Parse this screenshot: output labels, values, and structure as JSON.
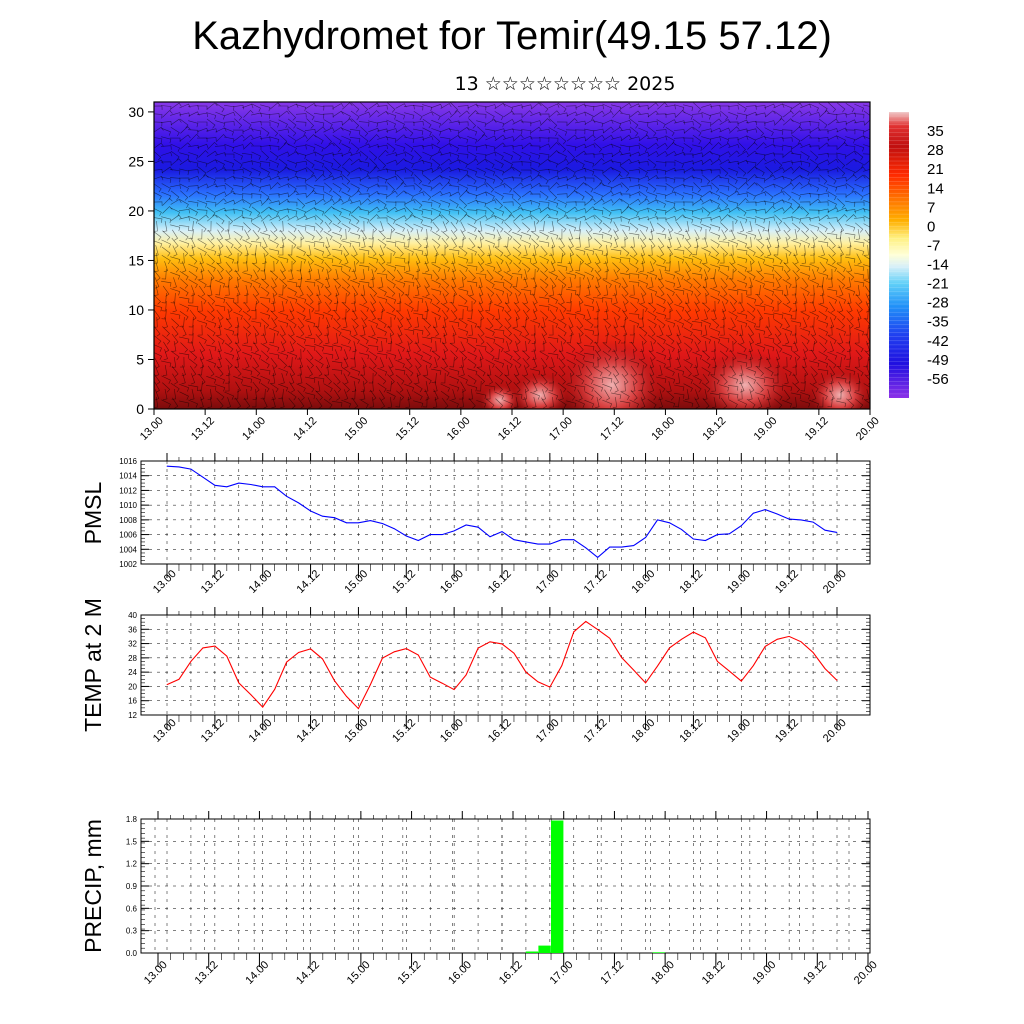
{
  "header": {
    "title": "Kazhydromet for Temir(49.15 57.12)",
    "subtitle": "13 ☆☆☆☆☆☆☆☆ 2025"
  },
  "chart_data": [
    {
      "type": "heatmap",
      "name": "temperature-wind-cross-section",
      "x_ticks": [
        "13.00",
        "13.12",
        "14.00",
        "14.12",
        "15.00",
        "15.12",
        "16.00",
        "16.12",
        "17.00",
        "17.12",
        "18.00",
        "18.12",
        "19.00",
        "19.12",
        "20.00"
      ],
      "y_ticks": [
        "0",
        "5",
        "10",
        "15",
        "20",
        "25",
        "30"
      ],
      "ylim": [
        0,
        31
      ],
      "colorbar_labels": [
        "35",
        "28",
        "21",
        "14",
        "7",
        "0",
        "-7",
        "-14",
        "-21",
        "-28",
        "-35",
        "-42",
        "-49",
        "-56"
      ],
      "colorbar_range": [
        -63,
        42
      ],
      "colors": [
        "#7b0d0d",
        "#d01010",
        "#ff3a00",
        "#ff8a00",
        "#ffd000",
        "#fff5b0",
        "#cfeef8",
        "#38b8f0",
        "#1e5cff",
        "#2020e0",
        "#4410e0",
        "#8a2ee0"
      ]
    },
    {
      "type": "line",
      "ylabel": "PMSL",
      "x_ticks": [
        "13.00",
        "13.12",
        "14.00",
        "14.12",
        "15.00",
        "15.12",
        "16.00",
        "16.12",
        "17.00",
        "17.12",
        "18.00",
        "18.12",
        "19.00",
        "19.12",
        "20.00"
      ],
      "y_ticks": [
        "1016",
        "1014",
        "1012",
        "1010",
        "1008",
        "1006",
        "1004",
        "1002"
      ],
      "ylim": [
        1002,
        1016
      ],
      "series": [
        {
          "color": "#0000ff",
          "values": [
            1015.3,
            1015.2,
            1014.9,
            1013.8,
            1012.7,
            1012.5,
            1013.0,
            1012.8,
            1012.5,
            1012.5,
            1011.2,
            1010.3,
            1009.2,
            1008.5,
            1008.3,
            1007.6,
            1007.6,
            1007.9,
            1007.5,
            1006.8,
            1005.8,
            1005.2,
            1006.0,
            1006.0,
            1006.5,
            1007.3,
            1007.0,
            1005.7,
            1006.4,
            1005.3,
            1005.0,
            1004.7,
            1004.7,
            1005.3,
            1005.3,
            1004.2,
            1002.9,
            1004.3,
            1004.3,
            1004.5,
            1005.6,
            1008.0,
            1007.6,
            1006.7,
            1005.4,
            1005.2,
            1006.0,
            1006.1,
            1007.2,
            1008.9,
            1009.4,
            1008.8,
            1008.1,
            1008.0,
            1007.7,
            1006.6,
            1006.3
          ]
        }
      ]
    },
    {
      "type": "line",
      "ylabel": "TEMP at 2 M",
      "x_ticks": [
        "13.00",
        "13.12",
        "14.00",
        "14.12",
        "15.00",
        "15.12",
        "16.00",
        "16.12",
        "17.00",
        "17.12",
        "18.00",
        "18.12",
        "19.00",
        "19.12",
        "20.00"
      ],
      "y_ticks": [
        "40",
        "36",
        "32",
        "28",
        "24",
        "20",
        "16",
        "12"
      ],
      "ylim": [
        12,
        40
      ],
      "series": [
        {
          "color": "#ff0000",
          "values": [
            20.5,
            22,
            27,
            30.8,
            31.3,
            28.5,
            21,
            17.7,
            14.2,
            19.2,
            26.8,
            29.5,
            30.5,
            27.7,
            21.6,
            17.2,
            13.8,
            20.5,
            27.9,
            29.7,
            30.6,
            28.8,
            22.6,
            20.9,
            19.1,
            23.2,
            30.7,
            32.5,
            31.9,
            29.3,
            24,
            21.3,
            19.8,
            25.8,
            35.3,
            38.2,
            35.9,
            33.5,
            28.1,
            24.6,
            21,
            25.7,
            30.8,
            33.2,
            35.2,
            33.6,
            27,
            24.3,
            21.5,
            25.8,
            31.2,
            33.2,
            34,
            32.5,
            29.5,
            25,
            21.7
          ]
        }
      ]
    },
    {
      "type": "bar",
      "ylabel": "PRECIP, mm",
      "x_ticks": [
        "13.00",
        "13.12",
        "14.00",
        "14.12",
        "15.00",
        "15.12",
        "16.00",
        "16.12",
        "17.00",
        "17.12",
        "18.00",
        "18.12",
        "19.00",
        "19.12",
        "20.00"
      ],
      "y_ticks": [
        "1.8",
        "1.5",
        "1.2",
        "0.9",
        "0.6",
        "0.3",
        "0.0"
      ],
      "ylim": [
        0,
        1.8
      ],
      "series": [
        {
          "color": "#00ff00",
          "values": [
            0,
            0,
            0,
            0,
            0,
            0,
            0,
            0,
            0,
            0,
            0,
            0,
            0,
            0,
            0,
            0,
            0,
            0,
            0,
            0,
            0,
            0,
            0,
            0,
            0,
            0,
            0,
            0,
            0,
            0.02,
            0.1,
            1.78,
            0,
            0,
            0,
            0,
            0,
            0,
            0,
            0.01,
            0,
            0,
            0,
            0,
            0,
            0,
            0,
            0,
            0,
            0,
            0,
            0,
            0,
            0,
            0,
            0
          ]
        }
      ]
    }
  ]
}
